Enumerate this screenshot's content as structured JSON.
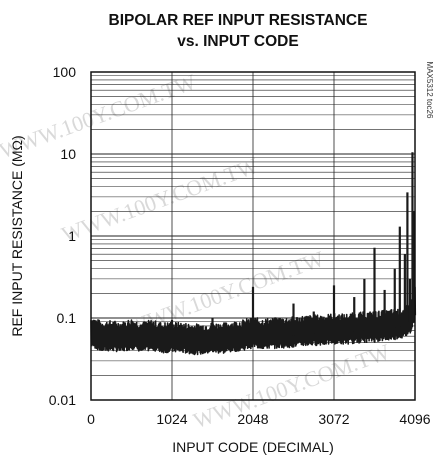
{
  "chart_data": {
    "type": "line",
    "title_line1": "BIPOLAR REF INPUT RESISTANCE",
    "title_line2": "vs. INPUT CODE",
    "xlabel": "INPUT CODE (DECIMAL)",
    "ylabel": "REF INPUT RESISTANCE (MΩ)",
    "xlim": [
      0,
      4096
    ],
    "ylim": [
      0.01,
      100
    ],
    "yscale": "log",
    "grid": true,
    "x_ticks": [
      0,
      1024,
      2048,
      3072,
      4096
    ],
    "x_tick_labels": [
      "0",
      "1024",
      "2048",
      "3072",
      "4096"
    ],
    "y_ticks": [
      0.01,
      0.1,
      1,
      10,
      100
    ],
    "y_tick_labels": [
      "0.01",
      "0.1",
      "1",
      "10",
      "100"
    ],
    "side_note": "MAX5312 toc26",
    "line_color": "#1a1a1a",
    "baseline_band": [
      [
        0,
        0.062
      ],
      [
        128,
        0.054
      ],
      [
        256,
        0.055
      ],
      [
        384,
        0.053
      ],
      [
        512,
        0.058
      ],
      [
        640,
        0.053
      ],
      [
        768,
        0.056
      ],
      [
        896,
        0.052
      ],
      [
        1024,
        0.053
      ],
      [
        1152,
        0.052
      ],
      [
        1280,
        0.05
      ],
      [
        1408,
        0.05
      ],
      [
        1536,
        0.052
      ],
      [
        1664,
        0.051
      ],
      [
        1792,
        0.054
      ],
      [
        1920,
        0.056
      ],
      [
        2048,
        0.06
      ],
      [
        2176,
        0.058
      ],
      [
        2304,
        0.059
      ],
      [
        2432,
        0.06
      ],
      [
        2560,
        0.061
      ],
      [
        2688,
        0.063
      ],
      [
        2816,
        0.064
      ],
      [
        2944,
        0.065
      ],
      [
        3072,
        0.067
      ],
      [
        3200,
        0.066
      ],
      [
        3328,
        0.068
      ],
      [
        3456,
        0.07
      ],
      [
        3584,
        0.071
      ],
      [
        3712,
        0.073
      ],
      [
        3840,
        0.076
      ],
      [
        3968,
        0.08
      ],
      [
        4032,
        0.09
      ],
      [
        4080,
        0.12
      ],
      [
        4096,
        0.15
      ]
    ],
    "spikes": [
      [
        512,
        0.09
      ],
      [
        1024,
        0.095
      ],
      [
        1536,
        0.1
      ],
      [
        2048,
        0.24
      ],
      [
        2560,
        0.15
      ],
      [
        2816,
        0.12
      ],
      [
        3072,
        0.25
      ],
      [
        3328,
        0.18
      ],
      [
        3456,
        0.3
      ],
      [
        3584,
        0.72
      ],
      [
        3712,
        0.22
      ],
      [
        3840,
        0.4
      ],
      [
        3904,
        1.3
      ],
      [
        3968,
        0.6
      ],
      [
        4000,
        3.4
      ],
      [
        4032,
        0.3
      ],
      [
        4064,
        10.5
      ],
      [
        4080,
        2.0
      ]
    ]
  }
}
